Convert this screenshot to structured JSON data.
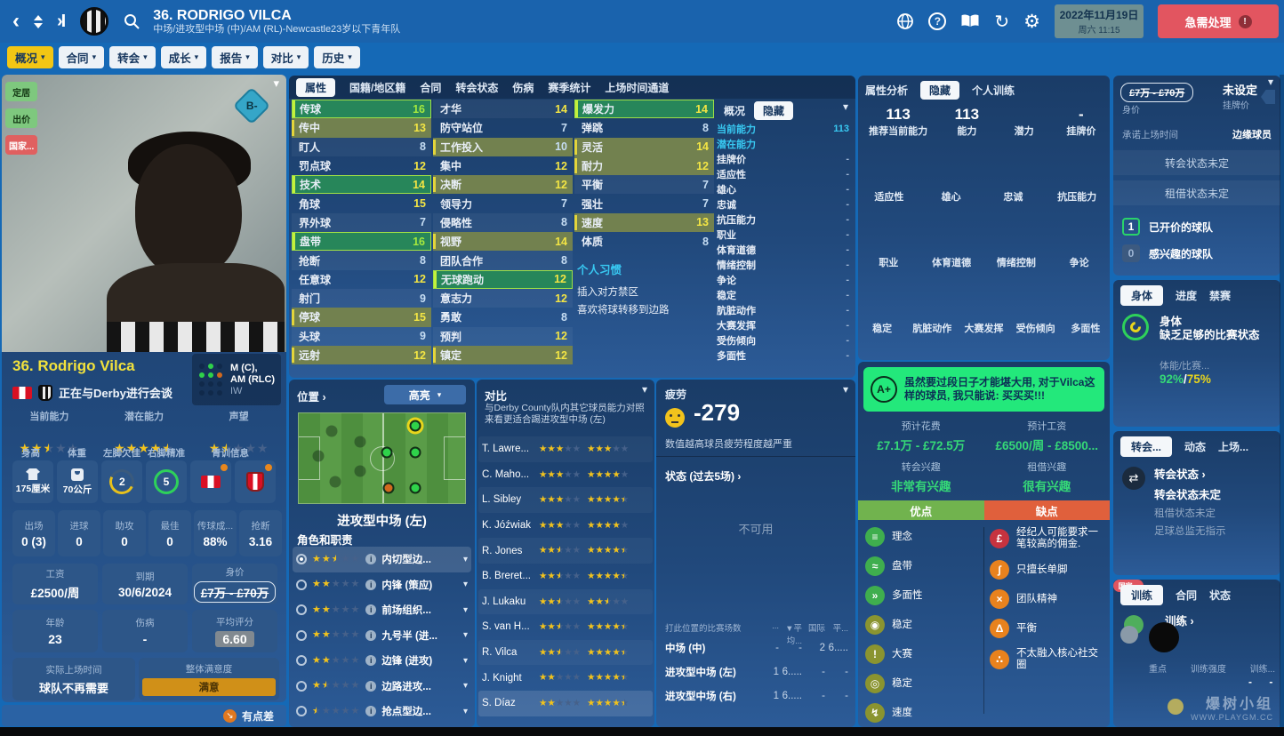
{
  "header": {
    "title": "36. RODRIGO VILCA",
    "subtitle": "中场/进攻型中场 (中)/AM (RL)-Newcastle23岁以下青年队",
    "date_line1": "2022年11月19日",
    "date_line2": "周六 11:15",
    "urgent_label": "急需处理",
    "nav_tabs": [
      {
        "label": "概况",
        "cls": "active"
      },
      {
        "label": "合同"
      },
      {
        "label": "转会"
      },
      {
        "label": "成长"
      },
      {
        "label": "报告"
      },
      {
        "label": "对比"
      },
      {
        "label": "历史"
      }
    ]
  },
  "player": {
    "side_badges": [
      {
        "label": "定居",
        "cls": "b-green"
      },
      {
        "label": "出价",
        "cls": "b-green"
      },
      {
        "label": "国家...",
        "cls": "b-red"
      }
    ],
    "overall_badge": "B-",
    "name": "36. Rodrigo Vilca",
    "status": "正在与Derby进行会谈",
    "pos_line1": "M (C),",
    "pos_line2": "AM (RLC)",
    "pos_line3": "IW",
    "ratings": [
      {
        "label": "当前能力",
        "stars": 2.5
      },
      {
        "label": "潜在能力",
        "stars": 4.5
      },
      {
        "label": "声望",
        "stars": 1.5
      }
    ],
    "phys_labels": {
      "height": "身高",
      "weight": "体重",
      "left_foot": "左脚欠佳",
      "right_foot": "右脚精准",
      "youth": "青训信息"
    },
    "height": "175厘米",
    "weight": "70公斤",
    "left_foot_val": "2",
    "right_foot_val": "5",
    "stats": [
      {
        "label": "出场",
        "value": "0 (3)"
      },
      {
        "label": "进球",
        "value": "0"
      },
      {
        "label": "助攻",
        "value": "0"
      },
      {
        "label": "最佳",
        "value": "0"
      },
      {
        "label": "传球成...",
        "value": "88%"
      },
      {
        "label": "抢断",
        "value": "3.16"
      }
    ],
    "contract": [
      {
        "label": "工资",
        "value": "£2500/周"
      },
      {
        "label": "到期",
        "value": "30/6/2024"
      },
      {
        "label": "身价",
        "value": "£7万 - £70万",
        "cls": "v-strike"
      }
    ],
    "misc": [
      {
        "label": "年龄",
        "value": "23"
      },
      {
        "label": "伤病",
        "value": "-"
      },
      {
        "label": "平均评分",
        "value": "6.60",
        "cls": "v-badge"
      }
    ],
    "playing_time_label": "实际上场时间",
    "playing_time": "球队不再需要",
    "happiness_label": "整体满意度",
    "happiness": "满意",
    "mood": "有点差"
  },
  "attributes": {
    "tabs": [
      {
        "label": "属性",
        "cls": "active"
      },
      {
        "label": "国籍/地区籍"
      },
      {
        "label": "合同"
      },
      {
        "label": "转会状态"
      },
      {
        "label": "伤病"
      },
      {
        "label": "赛季统计"
      },
      {
        "label": "上场时间通道"
      }
    ],
    "col1": [
      {
        "label": "传球",
        "value": 16,
        "cls": "hl-green",
        "vc": "v-top"
      },
      {
        "label": "传中",
        "value": 13,
        "cls": "hl-olive",
        "vc": "v-mid"
      },
      {
        "label": "盯人",
        "value": 8,
        "vc": "v-low"
      },
      {
        "label": "罚点球",
        "value": 12,
        "vc": "v-mid"
      },
      {
        "label": "技术",
        "value": 14,
        "cls": "hl-green",
        "vc": "v-mid"
      },
      {
        "label": "角球",
        "value": 15,
        "vc": "v-mid"
      },
      {
        "label": "界外球",
        "value": 7,
        "vc": "v-low"
      },
      {
        "label": "盘带",
        "value": 16,
        "cls": "hl-green",
        "vc": "v-top"
      },
      {
        "label": "抢断",
        "value": 8,
        "vc": "v-low"
      },
      {
        "label": "任意球",
        "value": 12,
        "vc": "v-mid"
      },
      {
        "label": "射门",
        "value": 9,
        "vc": "v-low"
      },
      {
        "label": "停球",
        "value": 15,
        "cls": "hl-olive",
        "vc": "v-mid"
      },
      {
        "label": "头球",
        "value": 9,
        "vc": "v-low"
      },
      {
        "label": "远射",
        "value": 12,
        "cls": "hl-olive",
        "vc": "v-mid"
      }
    ],
    "col2": [
      {
        "label": "才华",
        "value": 14,
        "vc": "v-mid"
      },
      {
        "label": "防守站位",
        "value": 7,
        "vc": "v-low"
      },
      {
        "label": "工作投入",
        "value": 10,
        "cls": "hl-olive",
        "vc": "v-low"
      },
      {
        "label": "集中",
        "value": 12,
        "vc": "v-mid"
      },
      {
        "label": "决断",
        "value": 12,
        "cls": "hl-olive",
        "vc": "v-mid"
      },
      {
        "label": "领导力",
        "value": 7,
        "vc": "v-low"
      },
      {
        "label": "侵略性",
        "value": 8,
        "vc": "v-low"
      },
      {
        "label": "视野",
        "value": 14,
        "cls": "hl-olive",
        "vc": "v-mid"
      },
      {
        "label": "团队合作",
        "value": 8,
        "vc": "v-low"
      },
      {
        "label": "无球跑动",
        "value": 12,
        "cls": "hl-green",
        "vc": "v-mid"
      },
      {
        "label": "意志力",
        "value": 12,
        "vc": "v-mid"
      },
      {
        "label": "勇敢",
        "value": 8,
        "vc": "v-low"
      },
      {
        "label": "预判",
        "value": 12,
        "vc": "v-mid"
      },
      {
        "label": "镇定",
        "value": 12,
        "cls": "hl-olive",
        "vc": "v-mid"
      }
    ],
    "col3": [
      {
        "label": "爆发力",
        "value": 14,
        "cls": "hl-green",
        "vc": "v-mid"
      },
      {
        "label": "弹跳",
        "value": 8,
        "vc": "v-low"
      },
      {
        "label": "灵活",
        "value": 14,
        "cls": "hl-olive",
        "vc": "v-mid"
      },
      {
        "label": "耐力",
        "value": 12,
        "cls": "hl-olive",
        "vc": "v-mid"
      },
      {
        "label": "平衡",
        "value": 7,
        "vc": "v-low"
      },
      {
        "label": "强壮",
        "value": 7,
        "vc": "v-low"
      },
      {
        "label": "速度",
        "value": 13,
        "cls": "hl-olive",
        "vc": "v-mid"
      },
      {
        "label": "体质",
        "value": 8,
        "vc": "v-low"
      }
    ],
    "habits_title": "个人习惯",
    "habits": [
      "插入对方禁区",
      "喜欢将球转移到边路"
    ],
    "overview": {
      "tab1": "概况",
      "tab2": "隐藏",
      "rows": [
        {
          "label": "当前能力",
          "value": "113",
          "cls": "m-cyan"
        },
        {
          "label": "潜在能力",
          "value": "",
          "cls": "m-cyan"
        },
        {
          "label": "挂牌价",
          "value": "-"
        },
        {
          "label": "适应性",
          "value": "-"
        },
        {
          "label": "雄心",
          "value": "-"
        },
        {
          "label": "忠诚",
          "value": "-"
        },
        {
          "label": "抗压能力",
          "value": "-"
        },
        {
          "label": "职业",
          "value": "-"
        },
        {
          "label": "体育道德",
          "value": "-"
        },
        {
          "label": "情绪控制",
          "value": "-"
        },
        {
          "label": "争论",
          "value": "-"
        },
        {
          "label": "稳定",
          "value": "-"
        },
        {
          "label": "肮脏动作",
          "value": "-"
        },
        {
          "label": "大赛发挥",
          "value": "-"
        },
        {
          "label": "受伤倾向",
          "value": "-"
        },
        {
          "label": "多面性",
          "value": "-"
        }
      ]
    }
  },
  "positions_panel": {
    "title": "位置",
    "highlight_label": "高亮",
    "position_name": "进攻型中场 (左)",
    "roles_title": "角色和职责",
    "roles": [
      {
        "stars": 2.5,
        "label": "内切型边...",
        "cls": "m-on"
      },
      {
        "stars": 2,
        "label": "内锋 (策应)"
      },
      {
        "stars": 2,
        "label": "前场组织..."
      },
      {
        "stars": 2,
        "label": "九号半 (进..."
      },
      {
        "stars": 2,
        "label": "边锋 (进攻)"
      },
      {
        "stars": 1.5,
        "label": "边路进攻..."
      },
      {
        "stars": 0.5,
        "label": "抢点型边..."
      }
    ]
  },
  "comparison": {
    "title": "对比",
    "description": "与Derby County队内其它球员能力对照来看更适合踢进攻型中场 (左)",
    "rows": [
      {
        "name": "T. Lawre...",
        "cur": 3,
        "pot": 3
      },
      {
        "name": "C. Maho...",
        "cur": 3,
        "pot": 4
      },
      {
        "name": "L. Sibley",
        "cur": 3,
        "pot": 4.5
      },
      {
        "name": "K. Jóźwiak",
        "cur": 3,
        "pot": 4
      },
      {
        "name": "R. Jones",
        "cur": 2.5,
        "pot": 4.5
      },
      {
        "name": "B. Breret...",
        "cur": 2.5,
        "pot": 4.5
      },
      {
        "name": "J. Lukaku",
        "cur": 2.5,
        "pot": 2.5
      },
      {
        "name": "S. van H...",
        "cur": 2.5,
        "pot": 4.5
      },
      {
        "name": "R. Vilca",
        "cur": 2.5,
        "pot": 4.5
      },
      {
        "name": "J. Knight",
        "cur": 2,
        "pot": 4.5
      },
      {
        "name": "S. Díaz",
        "cur": 2,
        "pot": 4.5,
        "cls": "m-lite"
      }
    ]
  },
  "fatigue": {
    "title": "疲劳",
    "value": "-279",
    "note": "数值越高球员疲劳程度越严重",
    "form_label": "状态 (过去5场) ›",
    "unavailable": "不可用",
    "table_label": "打此位置的比赛场数",
    "table_cols": [
      "...",
      "▼平均...",
      "国际",
      "平..."
    ],
    "rows": [
      {
        "pos": "中场 (中)",
        "c1": "-",
        "c2": "-",
        "c3": "2",
        "c4": "6....."
      },
      {
        "pos": "进攻型中场 (左)",
        "c1": "1",
        "c2": "6.....",
        "c3": "-",
        "c4": "-"
      },
      {
        "pos": "进攻型中场 (右)",
        "c1": "1",
        "c2": "6.....",
        "c3": "-",
        "c4": "-"
      }
    ]
  },
  "analysis": {
    "tab1": "属性分析",
    "tab2": "隐藏",
    "tab3": "个人训练",
    "row1": [
      {
        "v": "113",
        "l": "推荐当前能力"
      },
      {
        "v": "113",
        "l": "能力"
      },
      {
        "v": "",
        "l": "潜力"
      },
      {
        "v": "-",
        "l": "挂牌价"
      }
    ],
    "row2": [
      {
        "v": "",
        "l": "适应性"
      },
      {
        "v": "",
        "l": "雄心"
      },
      {
        "v": "",
        "l": "忠诚"
      },
      {
        "v": "",
        "l": "抗压能力"
      }
    ],
    "row3": [
      {
        "v": "",
        "l": "职业"
      },
      {
        "v": "",
        "l": "体育道德"
      },
      {
        "v": "",
        "l": "情绪控制"
      },
      {
        "v": "",
        "l": "争论"
      }
    ],
    "row4": [
      {
        "v": "",
        "l": "稳定"
      },
      {
        "v": "",
        "l": "肮脏动作"
      },
      {
        "v": "",
        "l": "大赛发挥"
      },
      {
        "v": "",
        "l": "受伤倾向"
      },
      {
        "v": "",
        "l": "多面性"
      }
    ]
  },
  "scout": {
    "grade": "A+",
    "verdict": "虽然要过段日子才能堪大用, 对于Vilca这样的球员, 我只能说: 买买买!!!",
    "cost_label": "预计花费",
    "cost": "£7.1万 - £72.5万",
    "wage_label": "预计工资",
    "wage": "£6500/周 - £8500...",
    "transfer_interest_label": "转会兴趣",
    "transfer_interest": "非常有兴趣",
    "loan_interest_label": "租借兴趣",
    "loan_interest": "很有兴趣",
    "pros_label": "优点",
    "cons_label": "缺点",
    "pros": [
      {
        "g": "≡",
        "label": "理念",
        "cls": "ic-green"
      },
      {
        "g": "≈",
        "label": "盘带",
        "cls": "ic-green"
      },
      {
        "g": "»",
        "label": "多面性",
        "cls": "ic-green"
      },
      {
        "g": "◉",
        "label": "稳定",
        "cls": "ic-olive"
      },
      {
        "g": "!",
        "label": "大赛",
        "cls": "ic-olive"
      },
      {
        "g": "◎",
        "label": "稳定",
        "cls": "ic-olive"
      },
      {
        "g": "↯",
        "label": "速度",
        "cls": "ic-olive"
      }
    ],
    "cons": [
      {
        "g": "£",
        "label": "经纪人可能要求一笔较高的佣金.",
        "cls": "ic-red"
      },
      {
        "g": "∫",
        "label": "只擅长单脚",
        "cls": "ic-orange"
      },
      {
        "g": "×",
        "label": "团队精神",
        "cls": "ic-orange"
      },
      {
        "g": "Δ",
        "label": "平衡",
        "cls": "ic-orange"
      },
      {
        "g": "∴",
        "label": "不太融入核心社交圈",
        "cls": "ic-orange"
      }
    ]
  },
  "transfer_info": {
    "value_range": "£7万 - £70万",
    "value_label": "身价",
    "asking": "未设定",
    "asking_label": "挂牌价",
    "promise_label": "承诺上场时间",
    "promise": "边缘球员",
    "transfer_status": "转会状态未定",
    "loan_status": "租借状态未定",
    "bids_count": "1",
    "bids_label": "已开价的球队",
    "interest_count": "0",
    "interest_label": "感兴趣的球队"
  },
  "condition": {
    "tab1": "身体",
    "tab2": "进度",
    "tab3": "禁赛",
    "heading": "身体",
    "status": "缺乏足够的比赛状态",
    "meta_label": "体能/比赛...",
    "condition_pct": "92%",
    "sharpness_pct": "75%"
  },
  "transfer_panel": {
    "tab1": "转会...",
    "tab2": "动态",
    "tab3": "上场...",
    "heading": "转会状态 ›",
    "line1": "转会状态未定",
    "line2": "租借状态未定",
    "line3": "足球总监无指示"
  },
  "training_panel": {
    "tab1": "训练",
    "tab2": "合同",
    "tab3": "状态",
    "heading": "训练 ›",
    "badge": "国家...",
    "col1": "重点",
    "col2": "训练强度",
    "col3": "训练...",
    "dashes": "- -"
  },
  "watermark": {
    "line1": "爆树小组",
    "line2": "WWW.PLAYGM.CC"
  },
  "colors": {
    "accent_yellow": "#f2c614",
    "panel_navy": "#1a3c67",
    "green_banner": "#23e87b",
    "alert_red": "#e25560",
    "money_green": "#35d977"
  }
}
